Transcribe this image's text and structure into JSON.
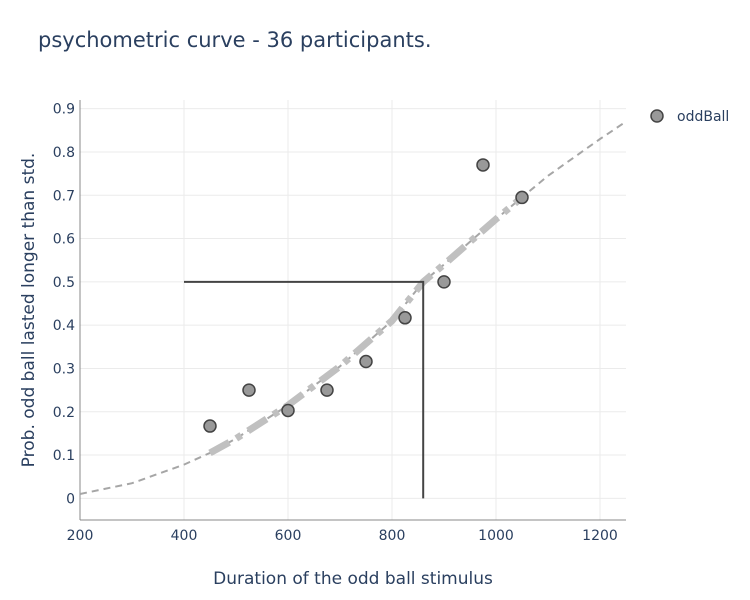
{
  "chart_data": {
    "type": "scatter",
    "title": "psychometric curve - 36 participants.",
    "xlabel": "Duration of the odd ball stimulus",
    "ylabel": "Prob. odd ball lasted longer than std.",
    "xlim": [
      200,
      1250
    ],
    "ylim": [
      -0.05,
      0.92
    ],
    "x_ticks": [
      "200",
      "400",
      "600",
      "800",
      "1000",
      "1200"
    ],
    "y_ticks": [
      "0",
      "0.1",
      "0.2",
      "0.3",
      "0.4",
      "0.5",
      "0.6",
      "0.7",
      "0.8",
      "0.9"
    ],
    "grid": true,
    "legend_position": "top-right",
    "series": [
      {
        "name": "oddBall",
        "mode": "markers",
        "color": "#999999",
        "x": [
          450,
          525,
          600,
          675,
          750,
          825,
          900,
          975,
          1050
        ],
        "y": [
          0.167,
          0.25,
          0.203,
          0.25,
          0.316,
          0.417,
          0.5,
          0.77,
          0.695
        ]
      },
      {
        "mode": "lines",
        "style": "dash",
        "color": "#a6a6a6",
        "x": [
          200,
          300,
          400,
          450,
          500,
          600,
          700,
          800,
          860,
          900,
          1000,
          1050,
          1100,
          1200,
          1250
        ],
        "y": [
          0.01,
          0.035,
          0.078,
          0.105,
          0.138,
          0.215,
          0.305,
          0.41,
          0.5,
          0.54,
          0.645,
          0.695,
          0.745,
          0.83,
          0.87
        ]
      },
      {
        "mode": "lines",
        "style": "dashdot-thick",
        "color": "#c0c0c0",
        "x": [
          450,
          500,
          600,
          700,
          800,
          860,
          900,
          1000,
          1050
        ],
        "y": [
          0.105,
          0.138,
          0.215,
          0.305,
          0.41,
          0.5,
          0.54,
          0.645,
          0.695
        ]
      },
      {
        "mode": "lines",
        "style": "solid",
        "color": "#444444",
        "x": [
          400,
          860,
          860
        ],
        "y": [
          0.5,
          0.5,
          0
        ]
      }
    ]
  }
}
